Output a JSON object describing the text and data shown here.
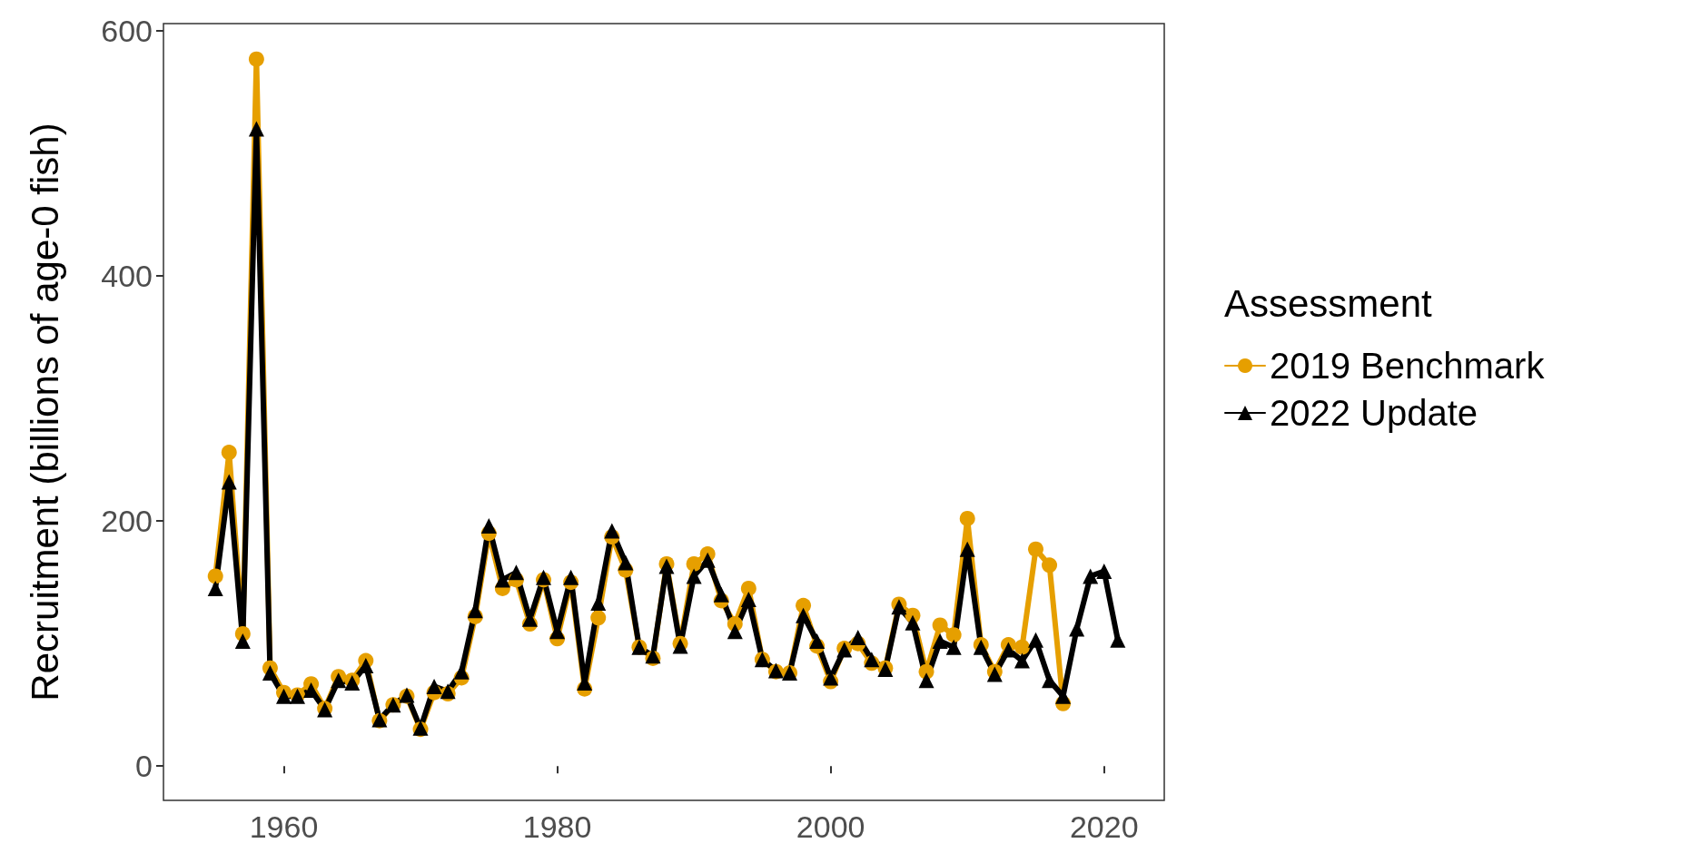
{
  "chart_data": {
    "type": "line",
    "ylabel": "Recruitment (billions of age-0 fish)",
    "legend_title": "Assessment",
    "legend": "right",
    "grid": false,
    "x": [
      1955,
      1956,
      1957,
      1958,
      1959,
      1960,
      1961,
      1962,
      1963,
      1964,
      1965,
      1966,
      1967,
      1968,
      1969,
      1970,
      1971,
      1972,
      1973,
      1974,
      1975,
      1976,
      1977,
      1978,
      1979,
      1980,
      1981,
      1982,
      1983,
      1984,
      1985,
      1986,
      1987,
      1988,
      1989,
      1990,
      1991,
      1992,
      1993,
      1994,
      1995,
      1996,
      1997,
      1998,
      1999,
      2000,
      2001,
      2002,
      2003,
      2004,
      2005,
      2006,
      2007,
      2008,
      2009,
      2010,
      2011,
      2012,
      2013,
      2014,
      2015,
      2016,
      2017,
      2018,
      2019,
      2020,
      2021
    ],
    "xlim": [
      1951.2,
      2024.4
    ],
    "xticks": [
      1960,
      1980,
      2000,
      2020
    ],
    "ylim": [
      -28,
      606
    ],
    "yticks": [
      0,
      200,
      400,
      600
    ],
    "series": [
      {
        "name": "2019 Benchmark",
        "color": "#e69f00",
        "marker": "circle",
        "values": [
          155,
          256,
          108,
          577,
          80,
          60,
          58,
          67,
          47,
          73,
          70,
          86,
          37,
          50,
          57,
          30,
          60,
          59,
          72,
          122,
          190,
          145,
          152,
          116,
          152,
          104,
          150,
          63,
          121,
          187,
          160,
          97,
          88,
          165,
          100,
          165,
          173,
          135,
          116,
          145,
          87,
          77,
          76,
          131,
          98,
          69,
          96,
          100,
          84,
          80,
          132,
          123,
          77,
          115,
          107,
          202,
          99,
          77,
          99,
          97,
          177,
          164,
          51,
          null,
          null,
          null,
          null
        ]
      },
      {
        "name": "2022 Update",
        "color": "#000000",
        "marker": "triangle",
        "values": [
          145,
          232,
          102,
          520,
          76,
          57,
          57,
          62,
          46,
          70,
          68,
          82,
          38,
          50,
          58,
          31,
          65,
          61,
          77,
          127,
          196,
          152,
          158,
          120,
          154,
          110,
          154,
          68,
          133,
          192,
          166,
          97,
          90,
          163,
          98,
          155,
          168,
          140,
          110,
          136,
          87,
          78,
          76,
          123,
          102,
          72,
          95,
          105,
          87,
          79,
          130,
          117,
          70,
          102,
          97,
          177,
          97,
          75,
          95,
          86,
          103,
          70,
          57,
          112,
          155,
          159,
          103
        ]
      }
    ]
  }
}
